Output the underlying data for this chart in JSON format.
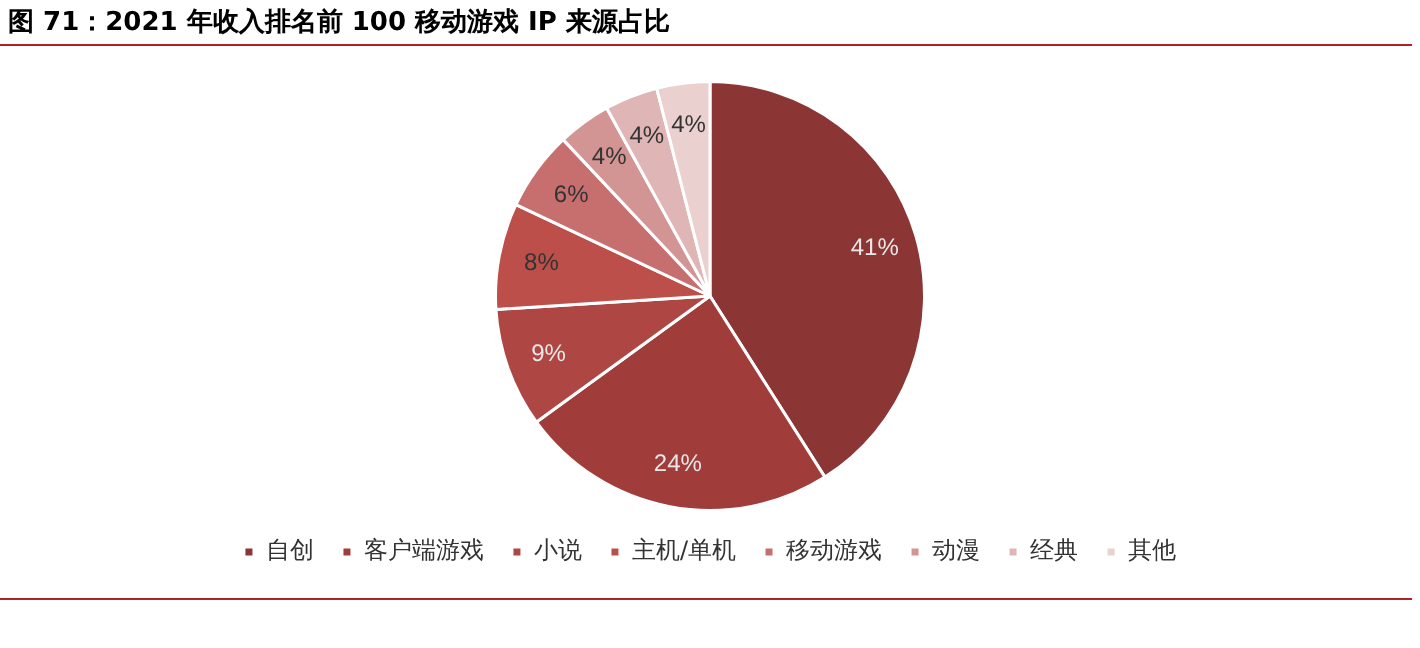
{
  "chart_data": {
    "type": "pie",
    "title": "图 71：2021 年收入排名前 100 移动游戏 IP 来源占比",
    "categories": [
      "自创",
      "客户端游戏",
      "小说",
      "主机/单机",
      "移动游戏",
      "动漫",
      "经典",
      "其他"
    ],
    "values": [
      41,
      24,
      9,
      8,
      6,
      4,
      4,
      4
    ],
    "colors": [
      "#8b3535",
      "#a03c3a",
      "#ae4744",
      "#bd4f4b",
      "#c76f6e",
      "#d39494",
      "#dfb5b5",
      "#ebd0d0"
    ],
    "value_labels": [
      "41%",
      "24%",
      "9%",
      "8%",
      "6%",
      "4%",
      "4%",
      "4%"
    ],
    "legend": "bottom"
  }
}
